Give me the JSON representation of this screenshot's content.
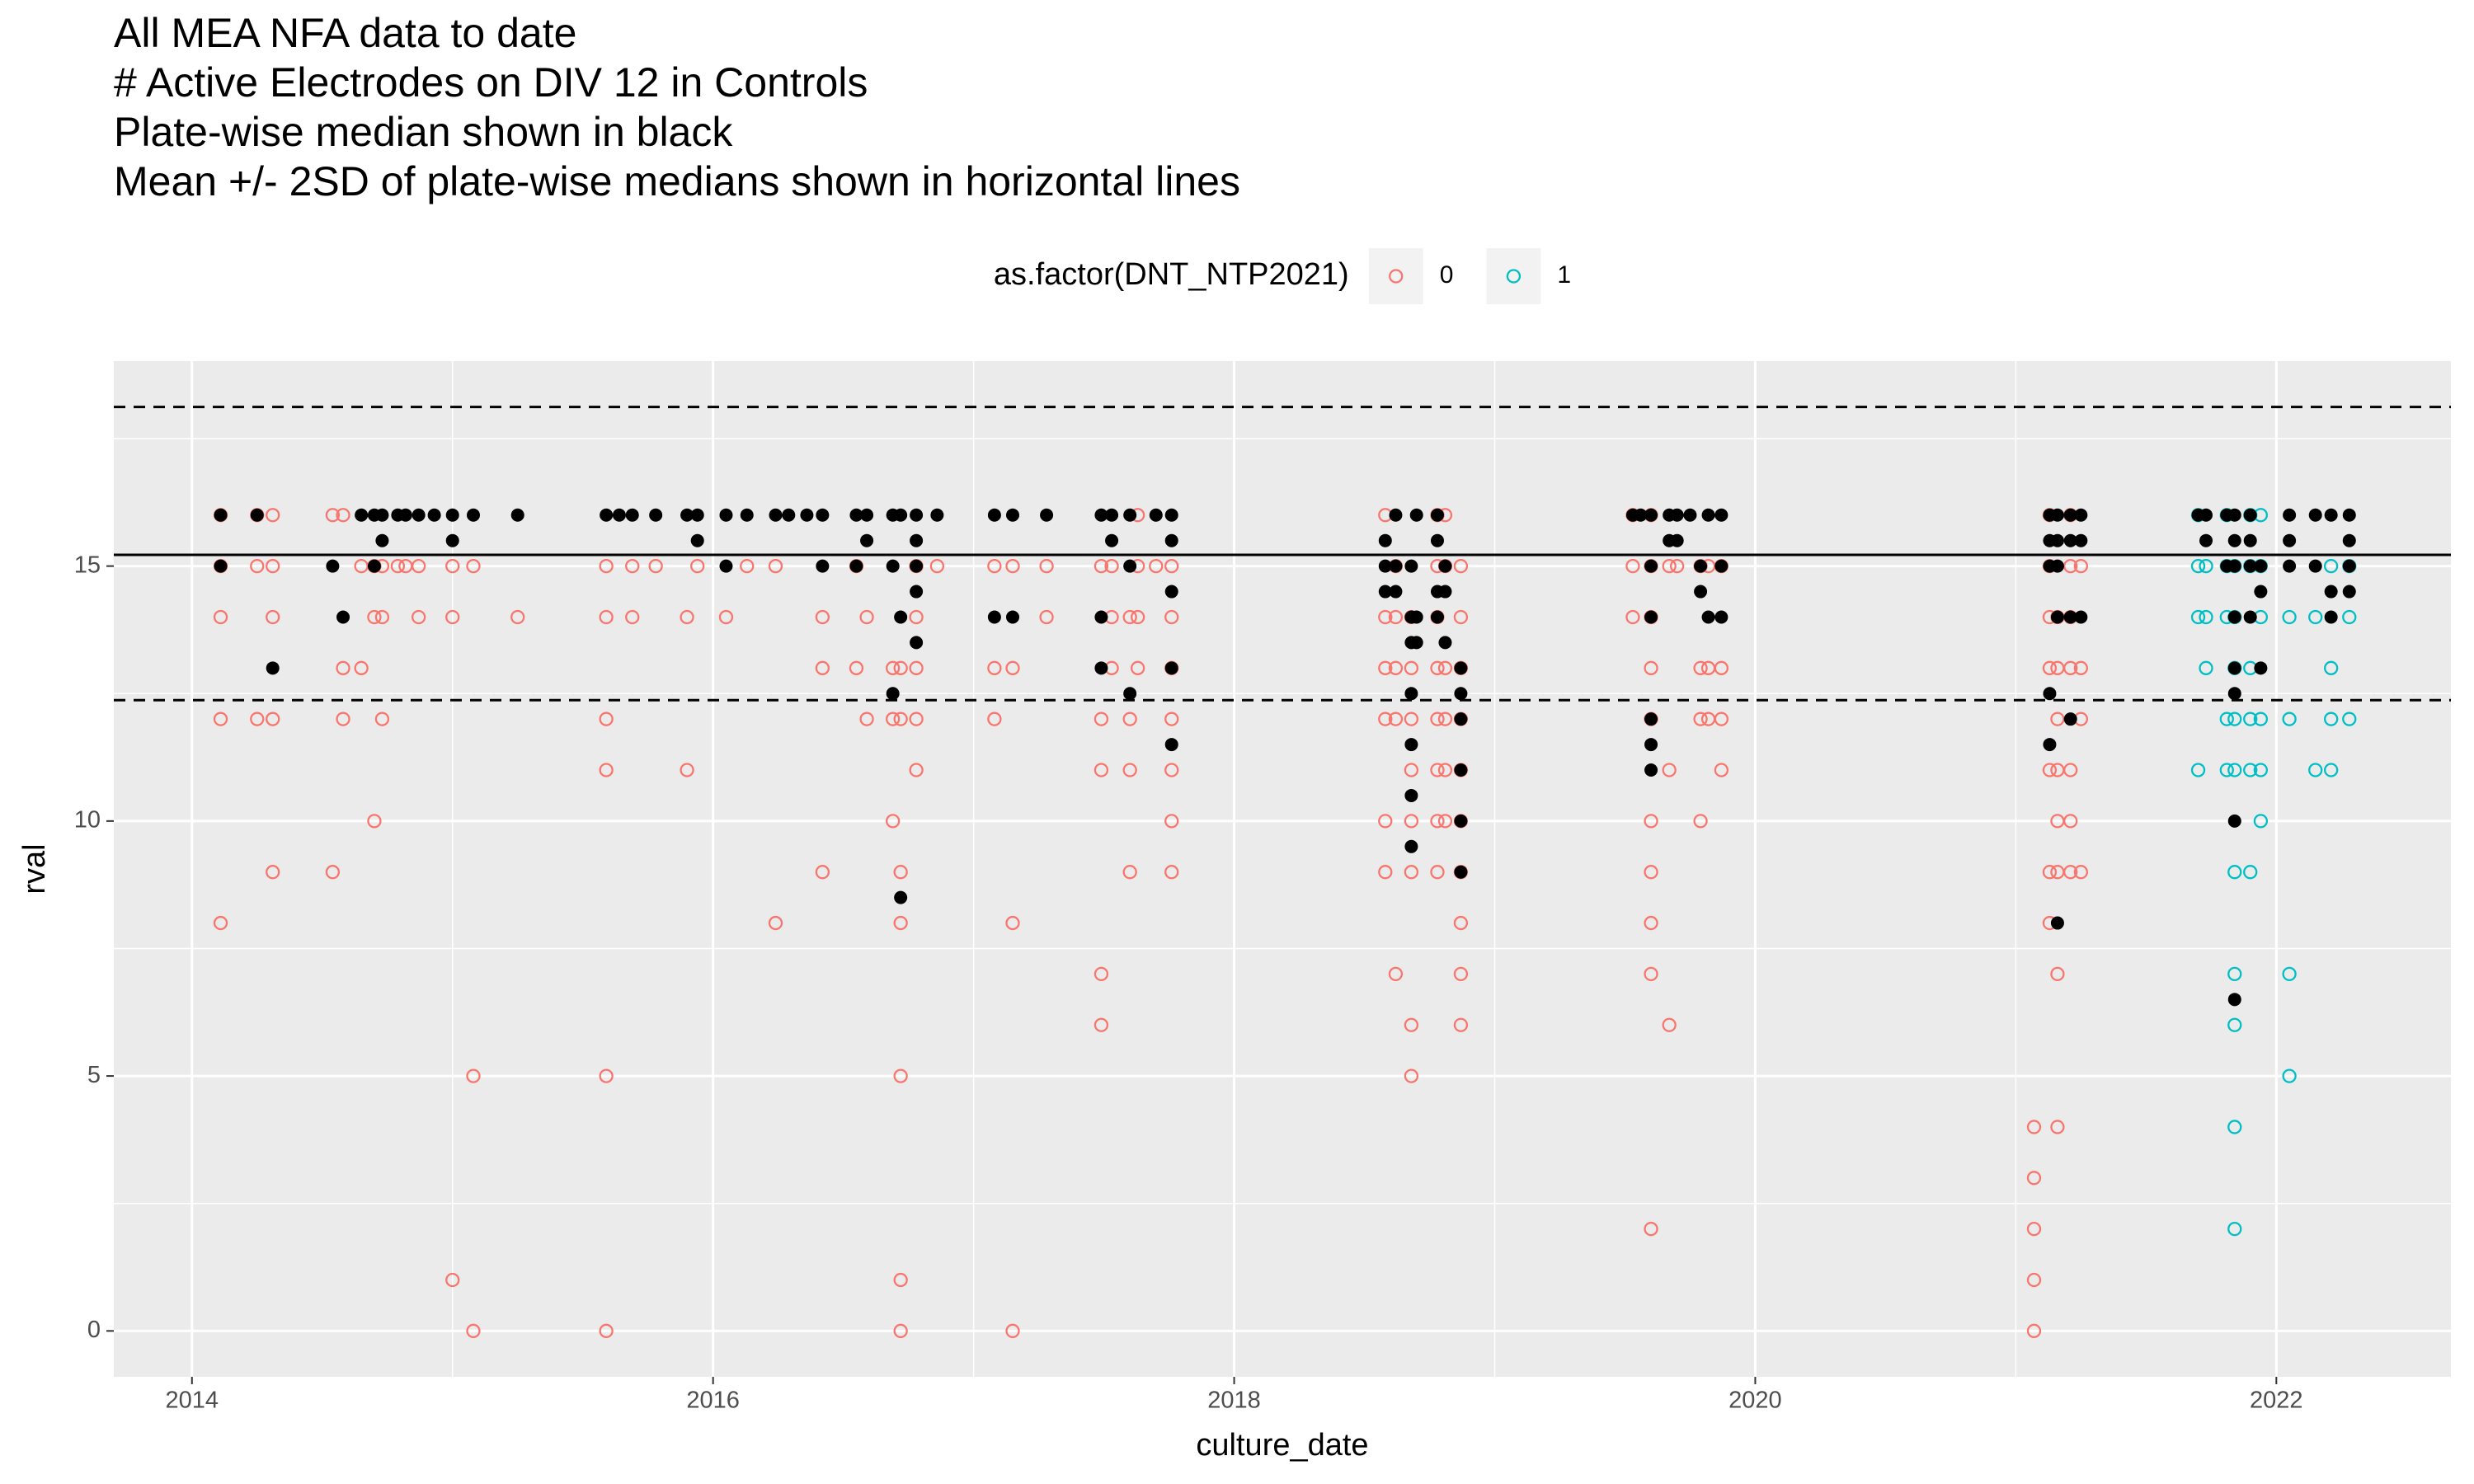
{
  "chart_data": {
    "type": "scatter",
    "title": [
      "All MEA NFA data to date",
      "# Active Electrodes on DIV 12 in Controls",
      "Plate-wise median shown in black",
      "Mean +/- 2SD of plate-wise medians shown in horizontal lines"
    ],
    "x_label": "culture_date",
    "y_label": "rval",
    "legend_title": "as.factor(DNT_NTP2021)",
    "legend_position": "top",
    "xlim": [
      2013.7,
      2022.67
    ],
    "xticks": [
      2014,
      2016,
      2018,
      2020,
      2022
    ],
    "ylim": [
      -0.9,
      19.02
    ],
    "yticks": [
      0,
      5,
      10,
      15
    ],
    "grid": true,
    "series": [
      {
        "name": "0",
        "color": "#F8766D",
        "x": [
          2014.11,
          2014.11,
          2014.11,
          2014.11,
          2014.11,
          2014.25,
          2014.25,
          2014.25,
          2014.31,
          2014.31,
          2014.31,
          2014.31,
          2014.31,
          2014.54,
          2014.54,
          2014.58,
          2014.58,
          2014.58,
          2014.65,
          2014.65,
          2014.7,
          2014.7,
          2014.7,
          2014.73,
          2014.73,
          2014.73,
          2014.79,
          2014.82,
          2014.87,
          2014.87,
          2015.0,
          2015.0,
          2015.0,
          2015.08,
          2015.08,
          2015.08,
          2015.25,
          2015.59,
          2015.59,
          2015.59,
          2015.59,
          2015.59,
          2015.59,
          2015.69,
          2015.69,
          2015.78,
          2015.9,
          2015.9,
          2015.94,
          2016.05,
          2016.13,
          2016.24,
          2016.24,
          2016.42,
          2016.42,
          2016.42,
          2016.55,
          2016.55,
          2016.59,
          2016.59,
          2016.69,
          2016.69,
          2016.69,
          2016.72,
          2016.72,
          2016.72,
          2016.72,
          2016.72,
          2016.72,
          2016.72,
          2016.78,
          2016.78,
          2016.78,
          2016.78,
          2016.78,
          2016.86,
          2017.08,
          2017.08,
          2017.08,
          2017.15,
          2017.15,
          2017.15,
          2017.15,
          2017.28,
          2017.28,
          2017.49,
          2017.49,
          2017.49,
          2017.49,
          2017.49,
          2017.53,
          2017.53,
          2017.53,
          2017.6,
          2017.6,
          2017.6,
          2017.6,
          2017.63,
          2017.63,
          2017.63,
          2017.63,
          2017.7,
          2017.76,
          2017.76,
          2017.76,
          2017.76,
          2017.76,
          2017.76,
          2017.76,
          2018.58,
          2018.58,
          2018.58,
          2018.58,
          2018.58,
          2018.58,
          2018.62,
          2018.62,
          2018.62,
          2018.62,
          2018.62,
          2018.68,
          2018.68,
          2018.68,
          2018.68,
          2018.68,
          2018.68,
          2018.68,
          2018.68,
          2018.78,
          2018.78,
          2018.78,
          2018.78,
          2018.78,
          2018.78,
          2018.78,
          2018.78,
          2018.81,
          2018.81,
          2018.81,
          2018.81,
          2018.81,
          2018.81,
          2018.87,
          2018.87,
          2018.87,
          2018.87,
          2018.87,
          2018.87,
          2018.87,
          2018.87,
          2018.87,
          2018.87,
          2019.53,
          2019.53,
          2019.53,
          2019.6,
          2019.6,
          2019.6,
          2019.6,
          2019.6,
          2019.6,
          2019.6,
          2019.6,
          2019.6,
          2019.6,
          2019.67,
          2019.67,
          2019.67,
          2019.7,
          2019.79,
          2019.79,
          2019.79,
          2019.79,
          2019.82,
          2019.82,
          2019.82,
          2019.87,
          2019.87,
          2019.87,
          2019.87,
          2021.07,
          2021.07,
          2021.07,
          2021.07,
          2021.07,
          2021.13,
          2021.13,
          2021.13,
          2021.13,
          2021.13,
          2021.13,
          2021.13,
          2021.16,
          2021.16,
          2021.16,
          2021.16,
          2021.16,
          2021.16,
          2021.16,
          2021.16,
          2021.21,
          2021.21,
          2021.21,
          2021.21,
          2021.21,
          2021.21,
          2021.21,
          2021.25,
          2021.25,
          2021.25,
          2021.25
        ],
        "values": [
          16,
          15,
          14,
          12,
          8,
          16,
          15,
          12,
          16,
          15,
          14,
          12,
          9,
          16,
          9,
          16,
          13,
          12,
          15,
          13,
          15,
          14,
          10,
          15,
          14,
          12,
          15,
          15,
          15,
          14,
          15,
          14,
          1,
          15,
          5,
          0,
          14,
          15,
          14,
          12,
          11,
          5,
          0,
          15,
          14,
          15,
          14,
          11,
          15,
          14,
          15,
          15,
          8,
          14,
          13,
          9,
          15,
          13,
          14,
          12,
          13,
          12,
          10,
          13,
          12,
          9,
          8,
          5,
          1,
          0,
          15,
          14,
          13,
          12,
          11,
          15,
          15,
          13,
          12,
          15,
          13,
          8,
          0,
          15,
          14,
          15,
          12,
          11,
          7,
          6,
          15,
          14,
          13,
          14,
          12,
          11,
          9,
          16,
          15,
          14,
          13,
          15,
          15,
          14,
          13,
          12,
          11,
          10,
          9,
          16,
          14,
          13,
          12,
          10,
          9,
          15,
          14,
          13,
          12,
          7,
          14,
          13,
          12,
          11,
          10,
          9,
          6,
          5,
          16,
          15,
          14,
          13,
          12,
          11,
          10,
          9,
          16,
          15,
          13,
          12,
          11,
          10,
          15,
          14,
          13,
          12,
          11,
          10,
          9,
          8,
          7,
          6,
          16,
          15,
          14,
          16,
          15,
          14,
          13,
          12,
          10,
          9,
          8,
          7,
          2,
          15,
          11,
          6,
          15,
          15,
          13,
          12,
          10,
          15,
          13,
          12,
          15,
          13,
          12,
          11,
          4,
          3,
          2,
          1,
          0,
          16,
          15,
          14,
          13,
          11,
          9,
          8,
          14,
          13,
          12,
          11,
          10,
          9,
          7,
          4,
          16,
          15,
          14,
          13,
          11,
          10,
          9,
          15,
          13,
          12,
          9
        ]
      },
      {
        "name": "1",
        "color": "#00BFC4",
        "x": [
          2021.7,
          2021.7,
          2021.7,
          2021.7,
          2021.73,
          2021.73,
          2021.73,
          2021.81,
          2021.81,
          2021.81,
          2021.81,
          2021.81,
          2021.84,
          2021.84,
          2021.84,
          2021.84,
          2021.84,
          2021.84,
          2021.84,
          2021.84,
          2021.84,
          2021.84,
          2021.9,
          2021.9,
          2021.9,
          2021.9,
          2021.9,
          2021.9,
          2021.94,
          2021.94,
          2021.94,
          2021.94,
          2021.94,
          2021.94,
          2022.05,
          2022.05,
          2022.05,
          2022.05,
          2022.15,
          2022.15,
          2022.21,
          2022.21,
          2022.21,
          2022.21,
          2022.28,
          2022.28,
          2022.28
        ],
        "values": [
          16,
          15,
          14,
          11,
          15,
          14,
          13,
          16,
          15,
          14,
          12,
          11,
          15,
          14,
          13,
          12,
          11,
          9,
          7,
          6,
          4,
          2,
          16,
          15,
          13,
          12,
          11,
          9,
          16,
          15,
          14,
          12,
          11,
          10,
          14,
          12,
          7,
          5,
          14,
          11,
          15,
          13,
          12,
          11,
          15,
          14,
          12
        ]
      }
    ],
    "medians": {
      "color": "#000000",
      "x": [
        2014.11,
        2014.11,
        2014.25,
        2014.31,
        2014.54,
        2014.58,
        2014.65,
        2014.7,
        2014.7,
        2014.73,
        2014.73,
        2014.79,
        2014.82,
        2014.87,
        2014.93,
        2015.0,
        2015.0,
        2015.08,
        2015.25,
        2015.59,
        2015.64,
        2015.69,
        2015.78,
        2015.9,
        2015.94,
        2015.94,
        2016.05,
        2016.05,
        2016.13,
        2016.24,
        2016.29,
        2016.36,
        2016.42,
        2016.42,
        2016.55,
        2016.55,
        2016.59,
        2016.59,
        2016.69,
        2016.69,
        2016.69,
        2016.72,
        2016.72,
        2016.72,
        2016.78,
        2016.78,
        2016.78,
        2016.78,
        2016.78,
        2016.86,
        2017.08,
        2017.08,
        2017.15,
        2017.15,
        2017.28,
        2017.49,
        2017.49,
        2017.49,
        2017.53,
        2017.53,
        2017.6,
        2017.6,
        2017.6,
        2017.7,
        2017.76,
        2017.76,
        2017.76,
        2017.76,
        2017.76,
        2018.58,
        2018.58,
        2018.58,
        2018.62,
        2018.62,
        2018.62,
        2018.68,
        2018.68,
        2018.68,
        2018.68,
        2018.68,
        2018.68,
        2018.68,
        2018.7,
        2018.7,
        2018.7,
        2018.78,
        2018.78,
        2018.78,
        2018.78,
        2018.81,
        2018.81,
        2018.81,
        2018.87,
        2018.87,
        2018.87,
        2018.87,
        2018.87,
        2018.87,
        2019.53,
        2019.56,
        2019.6,
        2019.6,
        2019.6,
        2019.6,
        2019.6,
        2019.6,
        2019.67,
        2019.67,
        2019.7,
        2019.7,
        2019.75,
        2019.79,
        2019.79,
        2019.82,
        2019.82,
        2019.87,
        2019.87,
        2019.87,
        2021.13,
        2021.13,
        2021.13,
        2021.13,
        2021.13,
        2021.16,
        2021.16,
        2021.16,
        2021.16,
        2021.16,
        2021.21,
        2021.21,
        2021.21,
        2021.21,
        2021.25,
        2021.25,
        2021.25,
        2021.7,
        2021.73,
        2021.73,
        2021.81,
        2021.81,
        2021.84,
        2021.84,
        2021.84,
        2021.84,
        2021.84,
        2021.84,
        2021.84,
        2021.84,
        2021.9,
        2021.9,
        2021.9,
        2021.9,
        2021.94,
        2021.94,
        2021.94,
        2022.05,
        2022.05,
        2022.05,
        2022.15,
        2022.15,
        2022.21,
        2022.21,
        2022.21,
        2022.28,
        2022.28,
        2022.28,
        2022.28
      ],
      "values": [
        16,
        15,
        16,
        13,
        15,
        14,
        16,
        16,
        15,
        16,
        15.5,
        16,
        16,
        16,
        16,
        16,
        15.5,
        16,
        16,
        16,
        16,
        16,
        16,
        16,
        16,
        15.5,
        16,
        15,
        16,
        16,
        16,
        16,
        16,
        15,
        16,
        15,
        16,
        15.5,
        16,
        15,
        12.5,
        16,
        14,
        8.5,
        16,
        15.5,
        15,
        14.5,
        13.5,
        16,
        16,
        14,
        16,
        14,
        16,
        16,
        14,
        13,
        16,
        15.5,
        16,
        15,
        12.5,
        16,
        16,
        15.5,
        14.5,
        13,
        11.5,
        15.5,
        15,
        14.5,
        16,
        15,
        14.5,
        15,
        14,
        13.5,
        12.5,
        11.5,
        10.5,
        9.5,
        16,
        14,
        13.5,
        16,
        15.5,
        14.5,
        14,
        15,
        14.5,
        13.5,
        13,
        12.5,
        12,
        11,
        10,
        9,
        16,
        16,
        16,
        15,
        14,
        12,
        11.5,
        11,
        16,
        15.5,
        16,
        15.5,
        16,
        15,
        14.5,
        16,
        14,
        16,
        15,
        14,
        16,
        15.5,
        15,
        12.5,
        11.5,
        16,
        15.5,
        15,
        14,
        8,
        16,
        15.5,
        14,
        12,
        16,
        15.5,
        14,
        16,
        16,
        15.5,
        16,
        15,
        16,
        15.5,
        15,
        14,
        13,
        12.5,
        10,
        6.5,
        16,
        15.5,
        15,
        14,
        15,
        14.5,
        13,
        16,
        15.5,
        15,
        16,
        15,
        16,
        14.5,
        14,
        16,
        15.5,
        15,
        14.5
      ]
    },
    "hlines": [
      {
        "value": 18.12,
        "style": "dashed"
      },
      {
        "value": 15.22,
        "style": "solid"
      },
      {
        "value": 12.37,
        "style": "dashed"
      }
    ]
  }
}
